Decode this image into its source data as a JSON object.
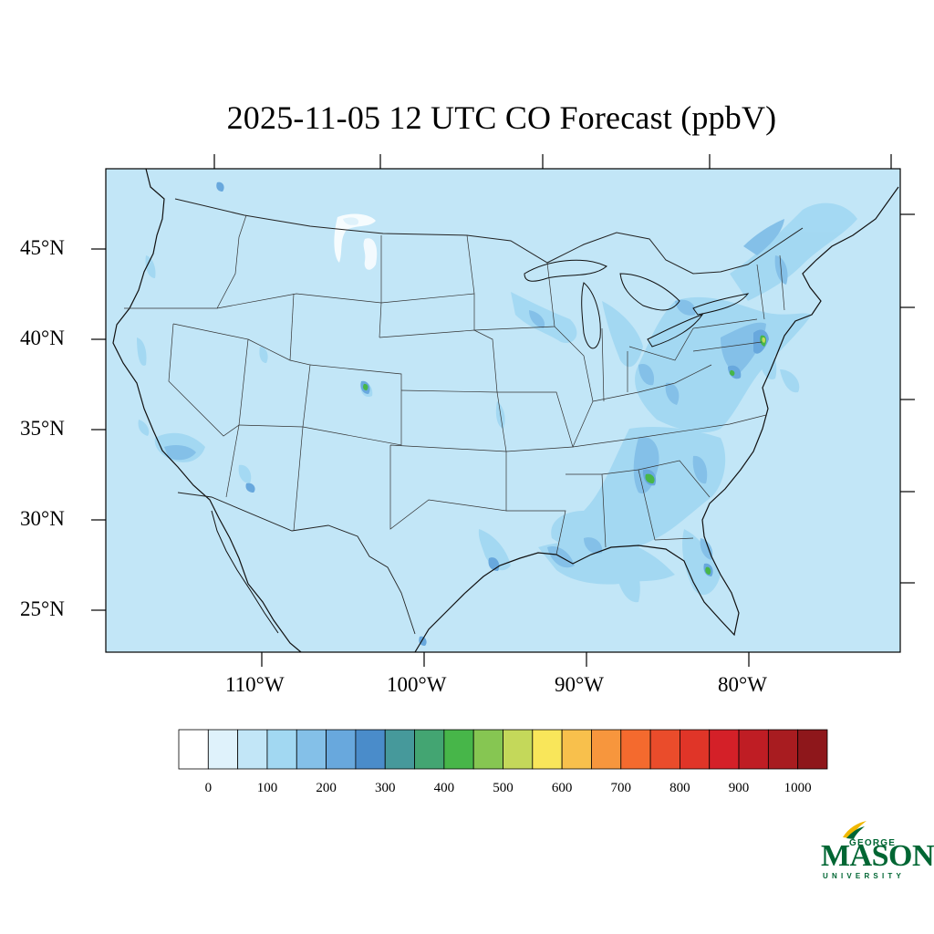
{
  "title": "2025-11-05 12 UTC CO Forecast (ppbV)",
  "map": {
    "latitude_labels": [
      "45°N",
      "40°N",
      "35°N",
      "30°N",
      "25°N"
    ],
    "longitude_labels": [
      "110°W",
      "100°W",
      "90°W",
      "80°W"
    ],
    "background_color": "#c2e6f7",
    "border_color": "#333333"
  },
  "colorbar": {
    "tick_labels": [
      "0",
      "100",
      "200",
      "300",
      "400",
      "500",
      "600",
      "700",
      "800",
      "900",
      "1000"
    ],
    "colors": [
      "#ffffff",
      "#dff2fb",
      "#c2e6f7",
      "#a2d8f2",
      "#84c0e8",
      "#68a8dd",
      "#4a8cca",
      "#46999b",
      "#43a572",
      "#47b649",
      "#86c652",
      "#c4d85a",
      "#f9e65a",
      "#f8c04c",
      "#f7963d",
      "#f46a2e",
      "#ea4c2b",
      "#e03528",
      "#d42028",
      "#bf1d24",
      "#a81c20",
      "#8e171b"
    ]
  },
  "logo": {
    "line1": "GEORGE",
    "line2": "MASON",
    "line3": "UNIVERSITY",
    "color": "#006633",
    "accent_color": "#f0b800"
  }
}
